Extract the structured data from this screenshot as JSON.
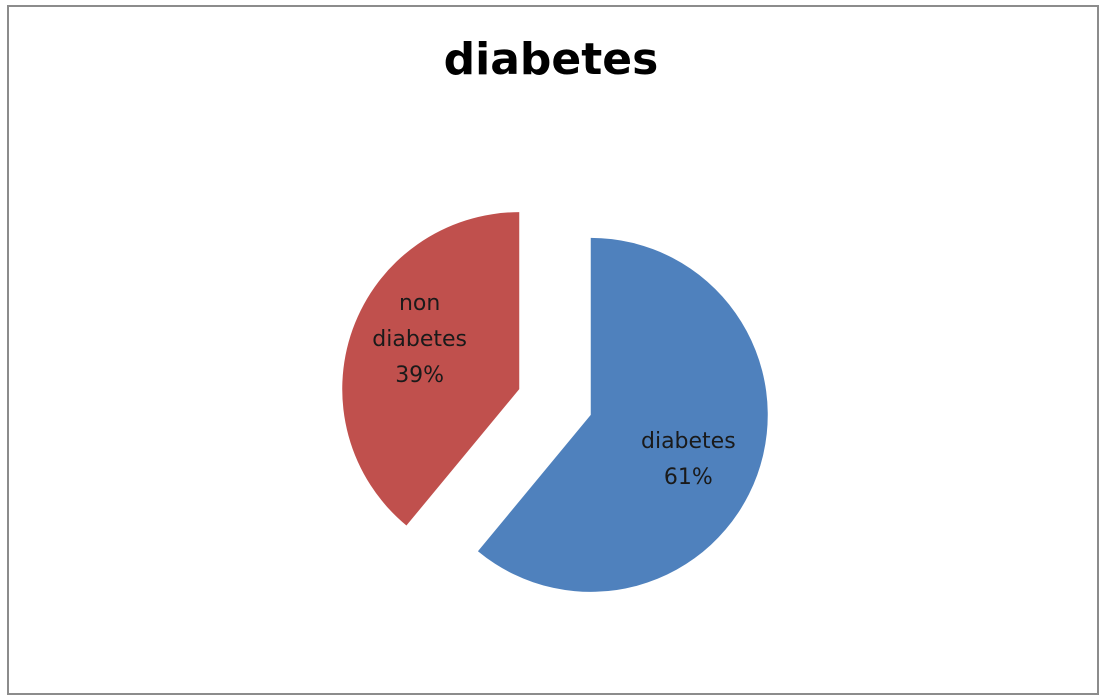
{
  "chart_data": {
    "type": "pie",
    "title": "diabetes",
    "slices": [
      {
        "label_lines": [
          "diabetes",
          "61%"
        ],
        "value": 61,
        "color": "#4f81bd"
      },
      {
        "label_lines": [
          "non",
          "diabetes",
          "39%"
        ],
        "value": 39,
        "color": "#c0504d"
      }
    ],
    "start_angle": "12 o'clock",
    "direction": "clockwise",
    "exploded": true,
    "legend": "none",
    "data_labels": "inside"
  }
}
